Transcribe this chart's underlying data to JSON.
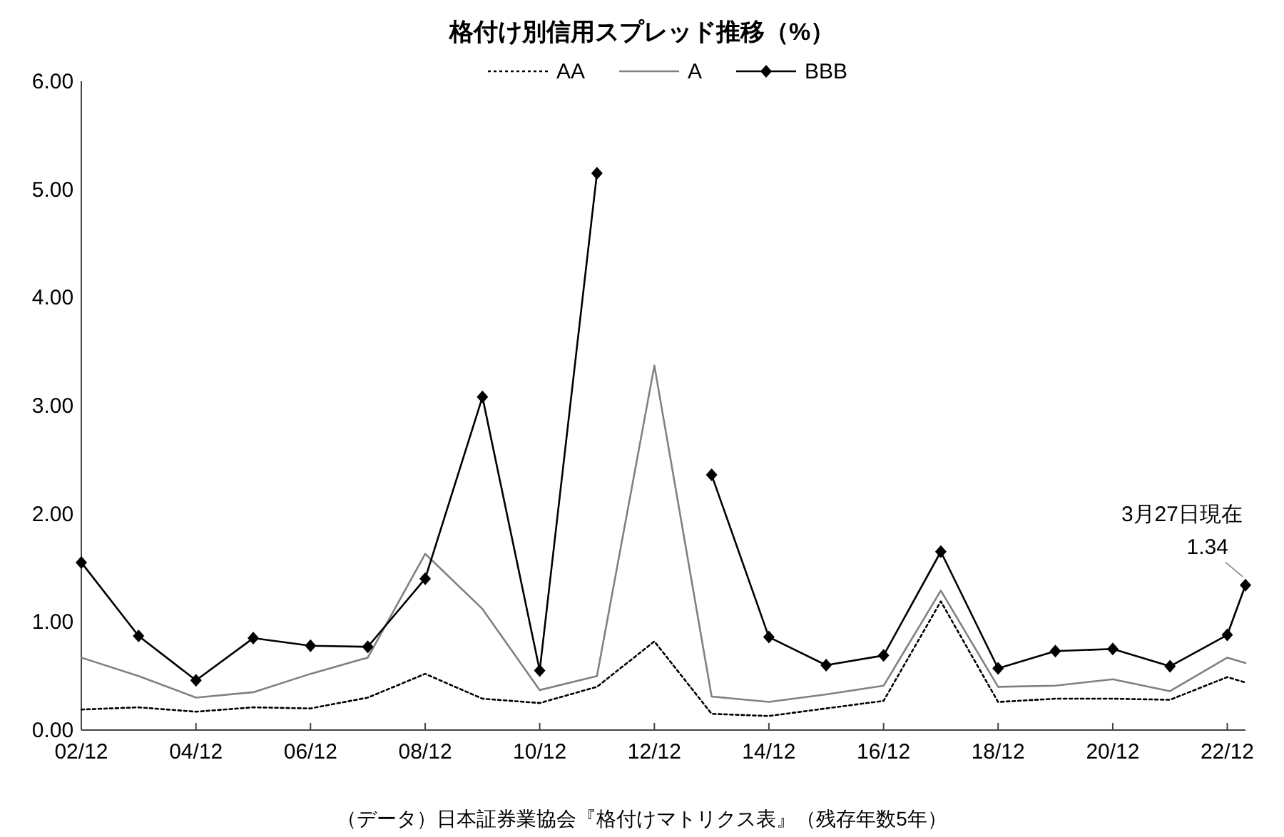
{
  "chart_data": {
    "type": "line",
    "title": "格付け別信用スプレッド推移（%）",
    "x": [
      "2002-12",
      "2003-12",
      "2004-12",
      "2005-12",
      "2006-12",
      "2007-12",
      "2008-12",
      "2009-12",
      "2010-12",
      "2011-12",
      "2012-12",
      "2013-12",
      "2014-12",
      "2015-12",
      "2016-12",
      "2017-12",
      "2018-12",
      "2019-12",
      "2020-12",
      "2021-12",
      "2022-12",
      "2023-03-27"
    ],
    "series": [
      {
        "name": "AA",
        "color": "#000000",
        "line_style": "dotted",
        "marker": "none",
        "values": [
          0.19,
          0.21,
          0.17,
          0.21,
          0.2,
          0.3,
          0.52,
          0.29,
          0.25,
          0.4,
          0.82,
          0.15,
          0.13,
          0.2,
          0.27,
          1.19,
          0.26,
          0.29,
          0.29,
          0.28,
          0.49,
          0.44
        ]
      },
      {
        "name": "A",
        "color": "#808080",
        "line_style": "solid",
        "marker": "none",
        "values": [
          0.67,
          0.5,
          0.3,
          0.35,
          0.52,
          0.67,
          1.63,
          1.12,
          0.37,
          0.5,
          3.37,
          0.31,
          0.26,
          0.33,
          0.41,
          1.29,
          0.4,
          0.41,
          0.47,
          0.36,
          0.67,
          0.62
        ]
      },
      {
        "name": "BBB",
        "color": "#000000",
        "line_style": "solid",
        "marker": "diamond",
        "values": [
          1.55,
          0.87,
          0.46,
          0.85,
          0.78,
          0.77,
          1.4,
          3.08,
          0.55,
          5.15,
          null,
          2.36,
          0.86,
          0.6,
          0.69,
          1.65,
          0.57,
          0.73,
          0.75,
          0.59,
          0.88,
          1.34
        ],
        "value_labels": [
          null,
          null,
          null,
          null,
          null,
          null,
          null,
          null,
          null,
          null,
          null,
          null,
          null,
          null,
          null,
          null,
          null,
          null,
          null,
          null,
          null,
          "1.34"
        ]
      }
    ],
    "xlim": [
      "2002-12",
      "2023-03-27"
    ],
    "xticks": [
      {
        "value": "2002-12",
        "label": "02/12"
      },
      {
        "value": "2004-12",
        "label": "04/12"
      },
      {
        "value": "2006-12",
        "label": "06/12"
      },
      {
        "value": "2008-12",
        "label": "08/12"
      },
      {
        "value": "2010-12",
        "label": "10/12"
      },
      {
        "value": "2012-12",
        "label": "12/12"
      },
      {
        "value": "2014-12",
        "label": "14/12"
      },
      {
        "value": "2016-12",
        "label": "16/12"
      },
      {
        "value": "2018-12",
        "label": "18/12"
      },
      {
        "value": "2020-12",
        "label": "20/12"
      },
      {
        "value": "2022-12",
        "label": "22/12"
      }
    ],
    "ylim": [
      0,
      6
    ],
    "yticks": [
      {
        "value": 0,
        "label": "0.00"
      },
      {
        "value": 1,
        "label": "1.00"
      },
      {
        "value": 2,
        "label": "2.00"
      },
      {
        "value": 3,
        "label": "3.00"
      },
      {
        "value": 4,
        "label": "4.00"
      },
      {
        "value": 5,
        "label": "5.00"
      },
      {
        "value": 6,
        "label": "6.00"
      }
    ],
    "grid": false,
    "legend": "top",
    "annotations": [
      {
        "text": "3月27日現在",
        "x": "2023-03-27",
        "y": 1.34
      },
      "（データ）日本証券業協会『格付けマトリクス表』（残存年数5年）"
    ]
  }
}
